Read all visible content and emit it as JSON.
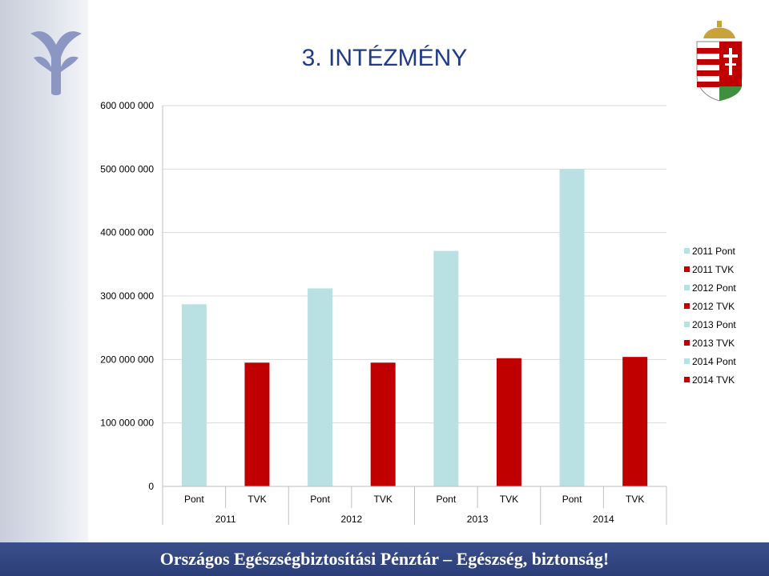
{
  "slide": {
    "title": "3. INTÉZMÉNY"
  },
  "footer": {
    "text": "Országos Egészségbiztosítási Pénztár – Egészség, biztonság!"
  },
  "colors": {
    "pont": "#b9e1e3",
    "tvk": "#c00000",
    "footer_bg": "#2f4280",
    "title": "#1f3a8a"
  },
  "icons": {
    "left_logo": "oep-logo-icon",
    "right_logo": "hungarian-coat-of-arms-icon"
  },
  "chart_data": {
    "type": "bar",
    "y_ticks": [
      "0",
      "100 000 000",
      "200 000 000",
      "300 000 000",
      "400 000 000",
      "500 000 000",
      "600 000 000"
    ],
    "ylim": [
      0,
      600000000
    ],
    "groups": [
      "2011",
      "2012",
      "2013",
      "2014"
    ],
    "categories": [
      "Pont",
      "TVK",
      "Pont",
      "TVK",
      "Pont",
      "TVK",
      "Pont",
      "TVK"
    ],
    "series": [
      {
        "name": "2011 Pont",
        "group": "2011",
        "category": "Pont",
        "value": 287000000,
        "color": "#b9e1e3"
      },
      {
        "name": "2011 TVK",
        "group": "2011",
        "category": "TVK",
        "value": 195000000,
        "color": "#c00000"
      },
      {
        "name": "2012 Pont",
        "group": "2012",
        "category": "Pont",
        "value": 312000000,
        "color": "#b9e1e3"
      },
      {
        "name": "2012 TVK",
        "group": "2012",
        "category": "TVK",
        "value": 195000000,
        "color": "#c00000"
      },
      {
        "name": "2013 Pont",
        "group": "2013",
        "category": "Pont",
        "value": 371000000,
        "color": "#b9e1e3"
      },
      {
        "name": "2013 TVK",
        "group": "2013",
        "category": "TVK",
        "value": 202000000,
        "color": "#c00000"
      },
      {
        "name": "2014 Pont",
        "group": "2014",
        "category": "Pont",
        "value": 500000000,
        "color": "#b9e1e3"
      },
      {
        "name": "2014 TVK",
        "group": "2014",
        "category": "TVK",
        "value": 204000000,
        "color": "#c00000"
      }
    ],
    "grid": true,
    "legend": "right"
  }
}
